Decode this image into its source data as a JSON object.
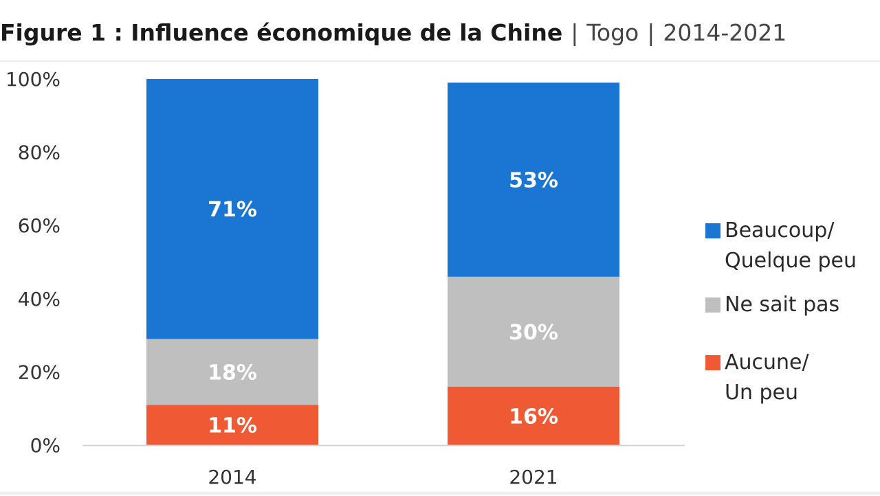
{
  "title": {
    "main": "Figure 1 : Influence économique de la Chine",
    "country": "Togo",
    "period": "2014-2021"
  },
  "chart_data": {
    "type": "bar",
    "stacked": true,
    "categories": [
      "2014",
      "2021"
    ],
    "series": [
      {
        "name": "Aucune/\nUn peu",
        "values": [
          11,
          16
        ],
        "labels": [
          "11%",
          "16%"
        ],
        "color": "#ef5a35"
      },
      {
        "name": "Ne sait pas",
        "values": [
          18,
          30
        ],
        "labels": [
          "18%",
          "30%"
        ],
        "color": "#bfbfbf"
      },
      {
        "name": "Beaucoup/\nQuelque peu",
        "values": [
          71,
          53
        ],
        "labels": [
          "71%",
          "53%"
        ],
        "color": "#1a76d2"
      }
    ],
    "yticks": [
      0,
      20,
      40,
      60,
      80,
      100
    ],
    "ytick_labels": [
      "0%",
      "20%",
      "40%",
      "60%",
      "80%",
      "100%"
    ],
    "ylim": [
      0,
      100
    ],
    "grid": false,
    "legend_position": "right",
    "legend_order": [
      2,
      1,
      0
    ]
  }
}
